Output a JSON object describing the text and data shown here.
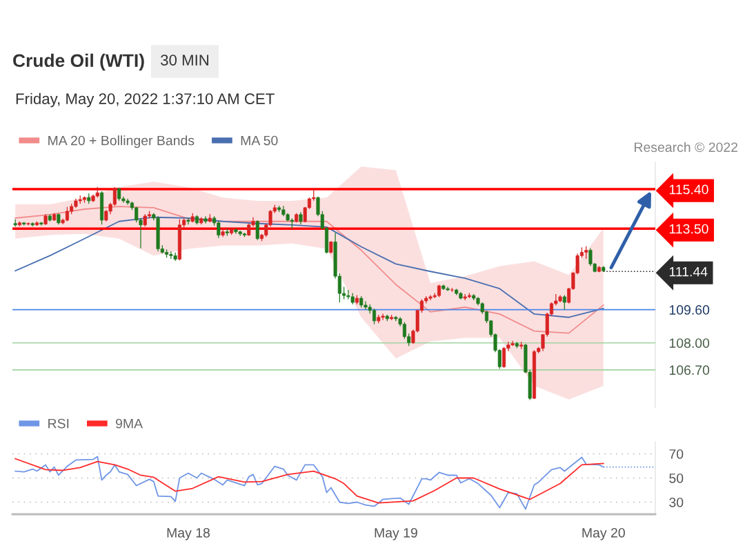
{
  "chart_data": [
    {
      "type": "candlestick",
      "title": "Crude Oil (WTI)",
      "subtitle": "Friday, May 20, 2022 1:37:10 AM CET",
      "annotations": [
        "30 MIN",
        "Research © 2022"
      ],
      "x": [
        "2022-05-17T04:00",
        "2022-05-17T04:30",
        "2022-05-17T05:00",
        "2022-05-17T05:30",
        "2022-05-17T06:00",
        "2022-05-17T06:30",
        "2022-05-17T07:00",
        "2022-05-17T07:30",
        "2022-05-17T08:00",
        "2022-05-17T08:30",
        "2022-05-17T09:00",
        "2022-05-17T09:30",
        "2022-05-17T10:00",
        "2022-05-17T10:30",
        "2022-05-17T11:00",
        "2022-05-17T11:30",
        "2022-05-17T12:00",
        "2022-05-17T12:30",
        "2022-05-17T13:00",
        "2022-05-17T13:30",
        "2022-05-17T14:00",
        "2022-05-17T14:30",
        "2022-05-17T15:00",
        "2022-05-17T15:30",
        "2022-05-17T16:00",
        "2022-05-17T16:30",
        "2022-05-17T17:00",
        "2022-05-17T17:30",
        "2022-05-17T18:00",
        "2022-05-17T18:30",
        "2022-05-17T19:00",
        "2022-05-17T19:30",
        "2022-05-17T20:00",
        "2022-05-17T20:30",
        "2022-05-17T21:00",
        "2022-05-17T21:30",
        "2022-05-17T22:00",
        "2022-05-17T22:30",
        "2022-05-17T23:00",
        "2022-05-17T23:30",
        "2022-05-18T00:00",
        "2022-05-18T00:30",
        "2022-05-18T01:00",
        "2022-05-18T01:30",
        "2022-05-18T02:00",
        "2022-05-18T02:30",
        "2022-05-18T03:00",
        "2022-05-18T03:30",
        "2022-05-18T04:00",
        "2022-05-18T04:30",
        "2022-05-18T05:00",
        "2022-05-18T05:30",
        "2022-05-18T06:00",
        "2022-05-18T06:30",
        "2022-05-18T07:00",
        "2022-05-18T07:30",
        "2022-05-18T08:00",
        "2022-05-18T08:30",
        "2022-05-18T09:00",
        "2022-05-18T09:30",
        "2022-05-18T10:00",
        "2022-05-18T10:30",
        "2022-05-18T11:00",
        "2022-05-18T11:30",
        "2022-05-18T12:00",
        "2022-05-18T12:30",
        "2022-05-18T13:00",
        "2022-05-18T13:30",
        "2022-05-18T14:00",
        "2022-05-18T14:30",
        "2022-05-18T15:00",
        "2022-05-18T15:30",
        "2022-05-18T16:00",
        "2022-05-18T16:30",
        "2022-05-18T17:00",
        "2022-05-18T17:30",
        "2022-05-18T18:00",
        "2022-05-18T18:30",
        "2022-05-18T19:00",
        "2022-05-18T19:30",
        "2022-05-18T20:00",
        "2022-05-18T20:30",
        "2022-05-18T21:00",
        "2022-05-18T21:30",
        "2022-05-18T22:00",
        "2022-05-18T22:30",
        "2022-05-18T23:00",
        "2022-05-18T23:30",
        "2022-05-19T00:00",
        "2022-05-19T00:30",
        "2022-05-19T01:00",
        "2022-05-19T01:30",
        "2022-05-19T02:00",
        "2022-05-19T02:30",
        "2022-05-19T03:00",
        "2022-05-19T03:30",
        "2022-05-19T04:00",
        "2022-05-19T04:30",
        "2022-05-19T05:00",
        "2022-05-19T05:30",
        "2022-05-19T06:00",
        "2022-05-19T06:30",
        "2022-05-19T07:00",
        "2022-05-19T07:30",
        "2022-05-19T08:00",
        "2022-05-19T08:30",
        "2022-05-19T09:00",
        "2022-05-19T09:30",
        "2022-05-19T10:00",
        "2022-05-19T10:30",
        "2022-05-19T11:00",
        "2022-05-19T11:30",
        "2022-05-19T12:00",
        "2022-05-19T12:30",
        "2022-05-19T13:00",
        "2022-05-19T13:30",
        "2022-05-19T14:00",
        "2022-05-19T14:30",
        "2022-05-19T15:00",
        "2022-05-19T15:30",
        "2022-05-19T16:00",
        "2022-05-19T16:30",
        "2022-05-19T17:00",
        "2022-05-19T17:30",
        "2022-05-19T18:00",
        "2022-05-19T18:30",
        "2022-05-19T19:00",
        "2022-05-19T19:30",
        "2022-05-19T20:00",
        "2022-05-19T20:30",
        "2022-05-19T21:00",
        "2022-05-19T21:30",
        "2022-05-19T22:00",
        "2022-05-19T22:30",
        "2022-05-19T23:00",
        "2022-05-19T23:30",
        "2022-05-20T00:00"
      ],
      "ohlc": [
        [
          113.75,
          113.95,
          113.6,
          113.68
        ],
        [
          113.68,
          113.85,
          113.62,
          113.78
        ],
        [
          113.78,
          113.82,
          113.65,
          113.72
        ],
        [
          113.72,
          113.8,
          113.66,
          113.75
        ],
        [
          113.75,
          113.8,
          113.62,
          113.68
        ],
        [
          113.68,
          113.85,
          113.64,
          113.78
        ],
        [
          113.78,
          113.82,
          113.65,
          113.72
        ],
        [
          113.72,
          114.2,
          113.68,
          114.11
        ],
        [
          114.11,
          114.18,
          113.85,
          113.91
        ],
        [
          113.91,
          114.25,
          113.88,
          114.18
        ],
        [
          114.18,
          114.22,
          113.7,
          113.78
        ],
        [
          113.78,
          113.98,
          113.72,
          113.91
        ],
        [
          113.91,
          114.55,
          113.85,
          114.34
        ],
        [
          114.34,
          114.7,
          114.2,
          114.57
        ],
        [
          114.57,
          114.95,
          114.5,
          114.84
        ],
        [
          114.84,
          115.1,
          114.7,
          114.9
        ],
        [
          114.9,
          115.05,
          114.75,
          115.0
        ],
        [
          115.0,
          115.2,
          114.7,
          114.84
        ],
        [
          114.84,
          115.15,
          114.78,
          115.07
        ],
        [
          115.07,
          115.5,
          115.0,
          115.23
        ],
        [
          115.23,
          115.3,
          113.7,
          113.91
        ],
        [
          113.91,
          114.4,
          113.85,
          114.34
        ],
        [
          114.34,
          114.75,
          114.2,
          114.67
        ],
        [
          114.67,
          115.5,
          114.6,
          115.43
        ],
        [
          115.43,
          115.45,
          114.85,
          114.94
        ],
        [
          114.94,
          115.05,
          114.75,
          114.84
        ],
        [
          114.84,
          114.95,
          114.65,
          114.74
        ],
        [
          114.74,
          114.8,
          114.4,
          114.51
        ],
        [
          114.51,
          114.55,
          113.8,
          113.91
        ],
        [
          113.91,
          114.0,
          112.55,
          113.68
        ],
        [
          113.68,
          114.2,
          113.6,
          114.11
        ],
        [
          114.11,
          114.35,
          114.0,
          114.18
        ],
        [
          114.18,
          114.25,
          113.9,
          114.01
        ],
        [
          114.01,
          114.1,
          112.4,
          112.53
        ],
        [
          112.53,
          112.7,
          112.3,
          112.36
        ],
        [
          112.36,
          112.5,
          112.1,
          112.26
        ],
        [
          112.26,
          112.4,
          112.05,
          112.2
        ],
        [
          112.2,
          112.35,
          111.95,
          112.03
        ],
        [
          112.03,
          113.95,
          111.98,
          113.68
        ],
        [
          113.68,
          114.0,
          113.55,
          113.91
        ],
        [
          113.91,
          114.0,
          113.7,
          113.85
        ],
        [
          113.85,
          114.25,
          113.8,
          114.08
        ],
        [
          114.08,
          114.15,
          113.7,
          113.78
        ],
        [
          113.78,
          114.05,
          113.7,
          113.98
        ],
        [
          113.98,
          114.1,
          113.75,
          113.85
        ],
        [
          113.85,
          114.2,
          113.8,
          114.01
        ],
        [
          114.01,
          114.1,
          113.65,
          113.78
        ],
        [
          113.78,
          113.85,
          113.05,
          113.19
        ],
        [
          113.19,
          113.45,
          113.1,
          113.35
        ],
        [
          113.35,
          113.5,
          113.15,
          113.29
        ],
        [
          113.29,
          113.55,
          113.2,
          113.45
        ],
        [
          113.45,
          113.5,
          113.25,
          113.35
        ],
        [
          113.35,
          113.4,
          113.15,
          113.25
        ],
        [
          113.25,
          113.3,
          113.1,
          113.19
        ],
        [
          113.19,
          113.75,
          113.15,
          113.68
        ],
        [
          113.68,
          114.05,
          113.6,
          113.85
        ],
        [
          113.85,
          113.9,
          112.95,
          113.02
        ],
        [
          113.02,
          113.25,
          112.9,
          113.19
        ],
        [
          113.19,
          113.75,
          113.1,
          113.68
        ],
        [
          113.68,
          114.4,
          113.6,
          114.34
        ],
        [
          114.34,
          114.65,
          114.25,
          114.51
        ],
        [
          114.51,
          114.6,
          114.3,
          114.41
        ],
        [
          114.41,
          114.6,
          114.1,
          114.18
        ],
        [
          114.18,
          114.25,
          113.85,
          113.91
        ],
        [
          113.91,
          114.0,
          113.5,
          113.85
        ],
        [
          113.85,
          114.25,
          113.8,
          114.18
        ],
        [
          114.18,
          114.3,
          113.7,
          113.85
        ],
        [
          113.85,
          114.55,
          113.8,
          114.51
        ],
        [
          114.51,
          115.0,
          114.45,
          114.94
        ],
        [
          114.94,
          115.45,
          114.85,
          115.0
        ],
        [
          115.0,
          115.05,
          114.1,
          114.18
        ],
        [
          114.18,
          114.35,
          113.45,
          113.52
        ],
        [
          113.52,
          113.55,
          112.3,
          112.36
        ],
        [
          112.36,
          112.9,
          112.3,
          112.86
        ],
        [
          112.86,
          113.3,
          111.1,
          111.21
        ],
        [
          111.21,
          111.35,
          109.95,
          110.38
        ],
        [
          110.38,
          110.7,
          110.1,
          110.28
        ],
        [
          110.28,
          110.55,
          110.1,
          110.22
        ],
        [
          110.22,
          110.4,
          109.85,
          109.95
        ],
        [
          109.95,
          110.3,
          109.85,
          110.15
        ],
        [
          110.15,
          110.25,
          109.7,
          109.82
        ],
        [
          109.82,
          110.0,
          109.6,
          109.72
        ],
        [
          109.72,
          109.85,
          109.4,
          109.56
        ],
        [
          109.56,
          109.65,
          108.9,
          109.06
        ],
        [
          109.06,
          109.35,
          108.95,
          109.23
        ],
        [
          109.23,
          109.4,
          109.1,
          109.29
        ],
        [
          109.29,
          109.35,
          109.05,
          109.16
        ],
        [
          109.16,
          109.35,
          109.1,
          109.23
        ],
        [
          109.23,
          109.3,
          109.05,
          109.16
        ],
        [
          109.16,
          109.25,
          108.8,
          108.9
        ],
        [
          108.9,
          109.0,
          108.2,
          108.3
        ],
        [
          108.3,
          108.45,
          107.85,
          108.01
        ],
        [
          108.01,
          108.65,
          107.95,
          108.57
        ],
        [
          108.57,
          109.6,
          108.5,
          109.56
        ],
        [
          109.56,
          110.1,
          109.45,
          110.02
        ],
        [
          110.02,
          110.25,
          109.9,
          110.15
        ],
        [
          110.15,
          110.3,
          110.05,
          110.22
        ],
        [
          110.22,
          110.4,
          110.15,
          110.28
        ],
        [
          110.28,
          110.8,
          110.2,
          110.75
        ],
        [
          110.75,
          110.8,
          110.55,
          110.61
        ],
        [
          110.61,
          110.7,
          110.5,
          110.55
        ],
        [
          110.55,
          110.65,
          110.45,
          110.55
        ],
        [
          110.55,
          110.6,
          110.3,
          110.38
        ],
        [
          110.38,
          110.45,
          110.1,
          110.15
        ],
        [
          110.15,
          110.35,
          110.05,
          110.22
        ],
        [
          110.22,
          110.4,
          110.15,
          110.28
        ],
        [
          110.28,
          110.35,
          110.05,
          110.15
        ],
        [
          110.15,
          110.2,
          109.8,
          109.89
        ],
        [
          109.89,
          109.95,
          109.4,
          109.49
        ],
        [
          109.49,
          109.55,
          108.95,
          109.06
        ],
        [
          109.06,
          109.1,
          108.3,
          108.4
        ],
        [
          108.4,
          108.45,
          107.55,
          107.64
        ],
        [
          107.64,
          107.7,
          106.75,
          106.85
        ],
        [
          106.85,
          107.8,
          106.8,
          107.74
        ],
        [
          107.74,
          108.05,
          107.6,
          107.9
        ],
        [
          107.9,
          108.1,
          107.85,
          107.97
        ],
        [
          107.97,
          108.05,
          107.75,
          107.84
        ],
        [
          107.84,
          108.05,
          107.7,
          107.9
        ],
        [
          107.9,
          107.95,
          106.55,
          106.59
        ],
        [
          106.59,
          106.7,
          105.25,
          105.33
        ],
        [
          105.33,
          107.65,
          105.3,
          107.58
        ],
        [
          107.58,
          107.8,
          107.5,
          107.74
        ],
        [
          107.74,
          108.4,
          107.6,
          108.4
        ],
        [
          108.4,
          109.45,
          108.3,
          109.39
        ],
        [
          109.39,
          109.95,
          109.3,
          109.89
        ],
        [
          109.89,
          110.35,
          109.8,
          110.02
        ],
        [
          110.02,
          110.3,
          109.95,
          110.22
        ],
        [
          110.22,
          110.3,
          109.6,
          109.95
        ],
        [
          109.95,
          110.65,
          109.9,
          110.61
        ],
        [
          110.61,
          111.4,
          110.55,
          111.37
        ],
        [
          111.37,
          112.3,
          111.3,
          112.2
        ],
        [
          112.2,
          112.6,
          112.1,
          112.36
        ],
        [
          112.36,
          112.65,
          112.05,
          112.46
        ],
        [
          112.46,
          112.55,
          111.7,
          111.8
        ],
        [
          111.8,
          111.85,
          111.4,
          111.44
        ],
        [
          111.44,
          111.7,
          111.4,
          111.64
        ],
        [
          111.64,
          111.7,
          111.42,
          111.47
        ]
      ],
      "series": [
        {
          "name": "MA 20 + Bollinger Bands",
          "type": "line",
          "color": "#f28b8b",
          "x": [
            "2022-05-17T04:00",
            "2022-05-17T08:00",
            "2022-05-17T12:00",
            "2022-05-17T16:00",
            "2022-05-17T20:00",
            "2022-05-18T00:00",
            "2022-05-18T04:00",
            "2022-05-18T08:00",
            "2022-05-18T12:00",
            "2022-05-18T16:00",
            "2022-05-18T20:00",
            "2022-05-19T00:00",
            "2022-05-19T04:00",
            "2022-05-19T08:00",
            "2022-05-19T12:00",
            "2022-05-19T16:00",
            "2022-05-19T20:00",
            "2022-05-20T00:00"
          ],
          "values": [
            114.01,
            114.18,
            114.44,
            114.57,
            114.51,
            113.98,
            113.85,
            113.85,
            113.85,
            113.85,
            112.46,
            110.81,
            109.49,
            109.72,
            109.39,
            108.57,
            108.47,
            109.82
          ],
          "lower": [
            113.02,
            113.19,
            113.25,
            113.02,
            112.2,
            112.53,
            112.69,
            112.69,
            112.79,
            112.53,
            109.23,
            107.25,
            108.07,
            108.24,
            108.24,
            105.93,
            105.27,
            105.93
          ],
          "upper": [
            114.67,
            114.67,
            115.0,
            115.5,
            115.76,
            115.5,
            115.0,
            114.84,
            114.84,
            115.0,
            116.49,
            116.32,
            110.88,
            111.21,
            111.7,
            111.93,
            111.27,
            113.52
          ]
        },
        {
          "name": "MA 50",
          "type": "line",
          "color": "#4a6fb0",
          "x": [
            "2022-05-17T04:00",
            "2022-05-17T08:00",
            "2022-05-17T12:00",
            "2022-05-17T16:00",
            "2022-05-17T20:00",
            "2022-05-18T00:00",
            "2022-05-18T04:00",
            "2022-05-18T08:00",
            "2022-05-18T12:00",
            "2022-05-18T16:00",
            "2022-05-18T20:00",
            "2022-05-19T00:00",
            "2022-05-19T04:00",
            "2022-05-19T08:00",
            "2022-05-19T12:00",
            "2022-05-19T16:00",
            "2022-05-19T20:00",
            "2022-05-20T00:00"
          ],
          "values": [
            111.47,
            112.2,
            113.02,
            113.85,
            114.05,
            114.01,
            113.85,
            113.75,
            113.68,
            113.58,
            112.63,
            111.8,
            111.44,
            111.11,
            110.61,
            109.39,
            109.23,
            109.66
          ]
        }
      ],
      "ref_lines": [
        {
          "axis": "y",
          "value": 115.4,
          "color": "#ff0000"
        },
        {
          "axis": "y",
          "value": 113.5,
          "color": "#ff0000"
        },
        {
          "axis": "y",
          "value": 111.44,
          "color": "#2b2b2b",
          "line_style": "dotted"
        },
        {
          "axis": "y",
          "value": 109.6,
          "color": "#4a86e8"
        },
        {
          "axis": "y",
          "value": 108.0,
          "color": "#9fd49f"
        },
        {
          "axis": "y",
          "value": 106.7,
          "color": "#9fd49f"
        }
      ],
      "yticks": [
        {
          "value": 115.4,
          "label": "115.40"
        },
        {
          "value": 113.5,
          "label": "113.50"
        },
        {
          "value": 111.44,
          "label": "111.44"
        },
        {
          "value": 109.6,
          "label": "109.60"
        },
        {
          "value": 108.0,
          "label": "108.00"
        },
        {
          "value": 106.7,
          "label": "106.70"
        }
      ],
      "xlim": [
        "2022-05-17T03:40",
        "2022-05-20T06:00"
      ],
      "ylim": [
        104.9,
        116.7
      ],
      "legend": "top left",
      "tick_labels": "y"
    },
    {
      "type": "line",
      "series": [
        {
          "name": "RSI",
          "color": "#7096e6",
          "x": [
            "2022-05-17T04:00",
            "2022-05-17T05:00",
            "2022-05-17T06:00",
            "2022-05-17T06:30",
            "2022-05-17T07:30",
            "2022-05-17T08:00",
            "2022-05-17T08:30",
            "2022-05-17T09:00",
            "2022-05-17T10:00",
            "2022-05-17T11:00",
            "2022-05-17T13:00",
            "2022-05-17T13:30",
            "2022-05-17T14:00",
            "2022-05-17T14:30",
            "2022-05-17T15:00",
            "2022-05-17T15:30",
            "2022-05-17T16:00",
            "2022-05-17T17:00",
            "2022-05-17T18:00",
            "2022-05-17T19:30",
            "2022-05-17T20:00",
            "2022-05-17T20:30",
            "2022-05-17T22:00",
            "2022-05-17T22:30",
            "2022-05-17T23:00",
            "2022-05-18T00:00",
            "2022-05-18T01:00",
            "2022-05-18T01:30",
            "2022-05-18T03:00",
            "2022-05-18T04:00",
            "2022-05-18T04:30",
            "2022-05-18T06:30",
            "2022-05-18T07:00",
            "2022-05-18T07:30",
            "2022-05-18T08:00",
            "2022-05-18T08:30",
            "2022-05-18T10:00",
            "2022-05-18T11:00",
            "2022-05-18T11:30",
            "2022-05-18T12:30",
            "2022-05-18T13:30",
            "2022-05-18T14:30",
            "2022-05-18T15:30",
            "2022-05-18T16:00",
            "2022-05-18T16:30",
            "2022-05-18T17:30",
            "2022-05-18T18:30",
            "2022-05-18T19:30",
            "2022-05-18T20:30",
            "2022-05-18T21:30",
            "2022-05-18T22:30",
            "2022-05-18T23:30",
            "2022-05-19T00:30",
            "2022-05-19T01:30",
            "2022-05-19T03:00",
            "2022-05-19T03:30",
            "2022-05-19T04:00",
            "2022-05-19T05:00",
            "2022-05-19T06:00",
            "2022-05-19T07:00",
            "2022-05-19T07:30",
            "2022-05-19T08:30",
            "2022-05-19T09:30",
            "2022-05-19T11:00",
            "2022-05-19T12:00",
            "2022-05-19T13:00",
            "2022-05-19T14:00",
            "2022-05-19T15:00",
            "2022-05-19T16:00",
            "2022-05-19T16:30",
            "2022-05-19T18:00",
            "2022-05-19T19:00",
            "2022-05-19T19:30",
            "2022-05-19T21:30",
            "2022-05-19T22:00",
            "2022-05-19T23:30",
            "2022-05-20T00:00"
          ],
          "values": [
            55.7,
            55.1,
            57.4,
            55.7,
            60.9,
            55.1,
            59.1,
            52.3,
            59.7,
            64.9,
            65.4,
            67.7,
            48.3,
            52.3,
            55.1,
            60.9,
            55.1,
            52.9,
            43.7,
            48.9,
            47.1,
            35.1,
            34.6,
            30.6,
            50,
            54,
            50,
            54,
            48.9,
            44.3,
            48.3,
            43.7,
            51.1,
            52.9,
            44.3,
            45.4,
            59.7,
            57.4,
            52.3,
            48.3,
            60.9,
            60.9,
            51.1,
            38,
            42,
            30,
            28.9,
            30,
            27.7,
            26.6,
            32.3,
            32.9,
            33.4,
            28.3,
            49.4,
            49.4,
            48.3,
            54.6,
            52.3,
            52.3,
            46,
            49.4,
            45.4,
            35.7,
            25.4,
            38,
            36.9,
            24.3,
            44.3,
            46.6,
            56.9,
            58.6,
            55.7,
            67.1,
            61.4,
            60.9,
            59.1
          ]
        },
        {
          "name": "9MA",
          "color": "#ff2a2a",
          "x": [
            "2022-05-17T04:00",
            "2022-05-17T07:30",
            "2022-05-17T09:30",
            "2022-05-17T11:30",
            "2022-05-17T13:30",
            "2022-05-17T15:30",
            "2022-05-17T17:00",
            "2022-05-17T18:30",
            "2022-05-17T20:00",
            "2022-05-17T22:30",
            "2022-05-18T00:30",
            "2022-05-18T03:30",
            "2022-05-18T06:30",
            "2022-05-18T08:30",
            "2022-05-18T11:30",
            "2022-05-18T14:30",
            "2022-05-18T17:00",
            "2022-05-18T18:00",
            "2022-05-18T19:30",
            "2022-05-18T22:00",
            "2022-05-19T02:00",
            "2022-05-19T04:30",
            "2022-05-19T07:00",
            "2022-05-19T09:00",
            "2022-05-19T12:00",
            "2022-05-19T15:30",
            "2022-05-19T19:00",
            "2022-05-19T21:30",
            "2022-05-20T00:00"
          ],
          "values": [
            66,
            56.9,
            56.3,
            58.6,
            63.7,
            60.9,
            57.4,
            52.3,
            50.6,
            39.1,
            41.4,
            51.1,
            46.6,
            47.1,
            52.9,
            55.7,
            49.4,
            45.4,
            35.1,
            29.4,
            31.1,
            39.7,
            50,
            50,
            40.9,
            32.3,
            45.4,
            60.9,
            62
          ]
        }
      ],
      "ref_lines": [
        {
          "axis": "y",
          "value": 59.1,
          "color": "#7096e6",
          "line_style": "dotted"
        }
      ],
      "xlim": [
        "2022-05-17T03:40",
        "2022-05-20T06:00"
      ],
      "ylim": [
        20,
        80
      ],
      "yticks": [
        30,
        50,
        70
      ],
      "xticks": [
        {
          "value": "2022-05-18",
          "label": "May 18"
        },
        {
          "value": "2022-05-19",
          "label": "May 19"
        },
        {
          "value": "2022-05-20",
          "label": "May 20"
        }
      ],
      "grid": "y",
      "legend": "top left"
    }
  ]
}
